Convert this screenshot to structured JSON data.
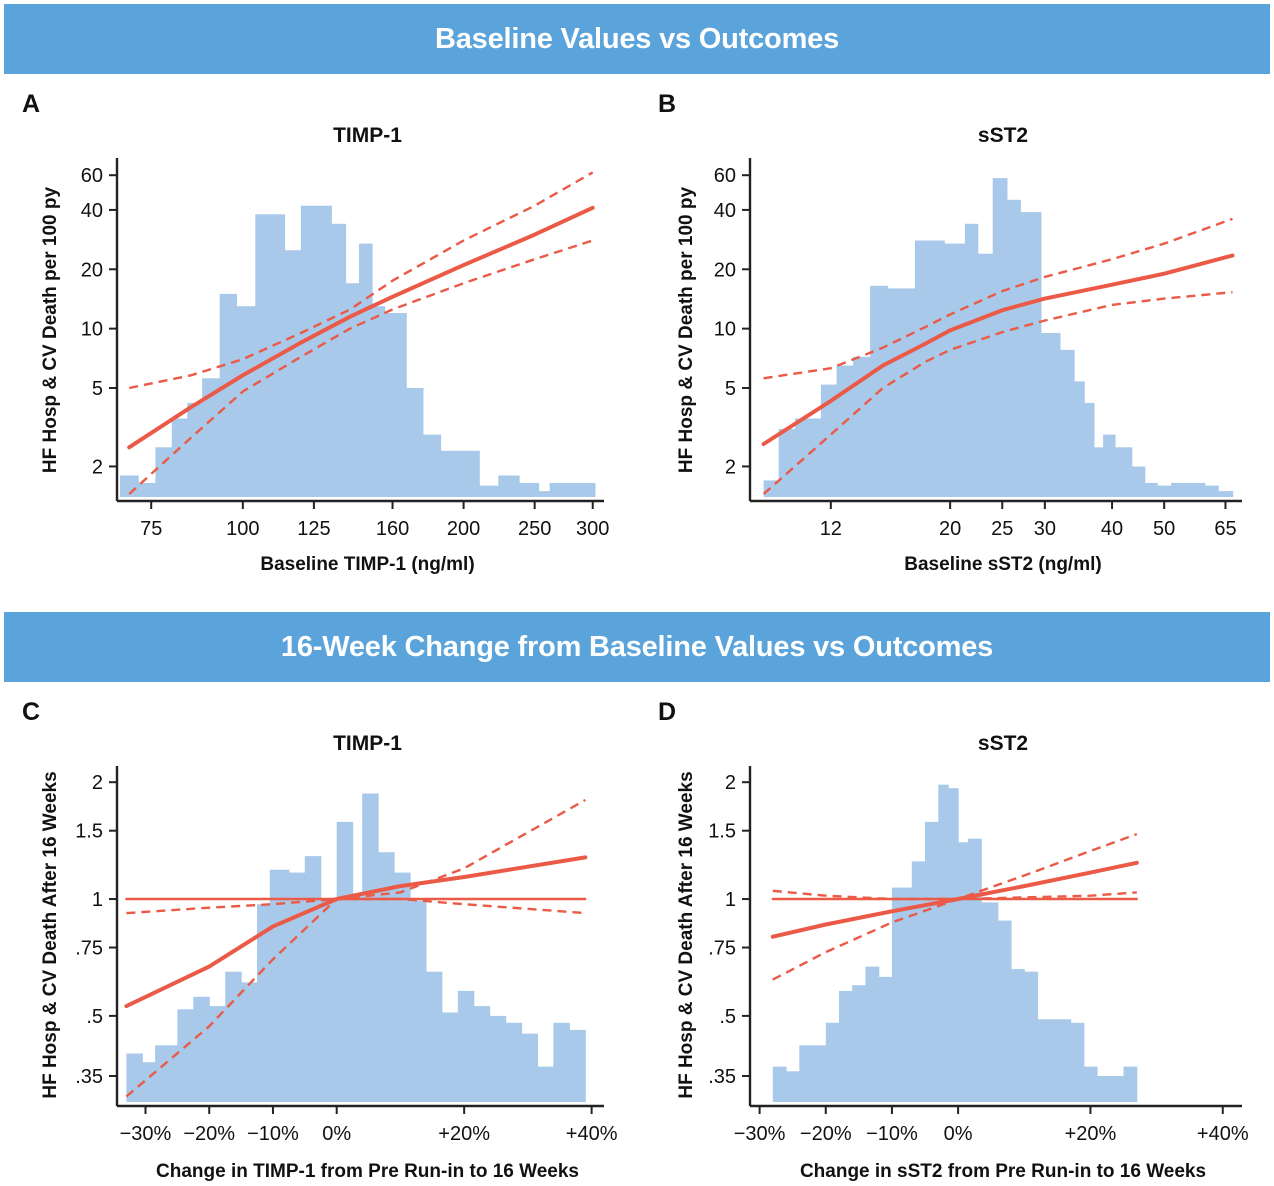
{
  "banners": {
    "top": "Baseline Values vs Outcomes",
    "bottom": "16-Week Change from Baseline Values vs Outcomes"
  },
  "colors": {
    "banner": "#5ba4db",
    "histogram": "#a9c9ea",
    "curve": "#ea5a46",
    "axis": "#222222"
  },
  "chart_data": [
    {
      "type": "histogram+line",
      "panel": "A",
      "title": "TIMP-1",
      "xlabel": "Baseline TIMP-1 (ng/ml)",
      "ylabel": "HF Hosp & CV Death per 100 py",
      "xscale": "log",
      "yscale": "log",
      "xlim": [
        68,
        305
      ],
      "ylim": [
        1.4,
        70
      ],
      "xticks": [
        75,
        100,
        125,
        160,
        200,
        250,
        300
      ],
      "xtick_labels": [
        "75",
        "100",
        "125",
        "160",
        "200",
        "250",
        "300"
      ],
      "yticks": [
        2,
        5,
        10,
        20,
        40,
        60
      ],
      "ytick_labels": [
        "2",
        "5",
        "10",
        "20",
        "40",
        "60"
      ],
      "grid": false,
      "histogram_bins": [
        {
          "x0": 68,
          "x1": 72,
          "y": 1.8
        },
        {
          "x0": 72,
          "x1": 76,
          "y": 1.65
        },
        {
          "x0": 76,
          "x1": 80,
          "y": 2.5
        },
        {
          "x0": 80,
          "x1": 84,
          "y": 3.5
        },
        {
          "x0": 84,
          "x1": 88,
          "y": 4.2
        },
        {
          "x0": 88,
          "x1": 93,
          "y": 5.6
        },
        {
          "x0": 93,
          "x1": 98,
          "y": 15
        },
        {
          "x0": 98,
          "x1": 104,
          "y": 13
        },
        {
          "x0": 104,
          "x1": 114,
          "y": 38
        },
        {
          "x0": 114,
          "x1": 120,
          "y": 25
        },
        {
          "x0": 120,
          "x1": 132,
          "y": 42
        },
        {
          "x0": 132,
          "x1": 138,
          "y": 34
        },
        {
          "x0": 138,
          "x1": 144,
          "y": 17
        },
        {
          "x0": 144,
          "x1": 150,
          "y": 27
        },
        {
          "x0": 150,
          "x1": 156,
          "y": 13
        },
        {
          "x0": 156,
          "x1": 167,
          "y": 12
        },
        {
          "x0": 167,
          "x1": 176,
          "y": 5
        },
        {
          "x0": 176,
          "x1": 186,
          "y": 2.9
        },
        {
          "x0": 186,
          "x1": 210,
          "y": 2.4
        },
        {
          "x0": 210,
          "x1": 223,
          "y": 1.6
        },
        {
          "x0": 223,
          "x1": 238,
          "y": 1.8
        },
        {
          "x0": 238,
          "x1": 253,
          "y": 1.65
        },
        {
          "x0": 253,
          "x1": 262,
          "y": 1.5
        },
        {
          "x0": 262,
          "x1": 302,
          "y": 1.65
        }
      ],
      "series": [
        {
          "style": "solid",
          "x": [
            70,
            85,
            100,
            120,
            140,
            160,
            200,
            250,
            300
          ],
          "y": [
            2.5,
            4.0,
            5.8,
            8.5,
            11.5,
            14.5,
            21,
            30,
            41
          ]
        },
        {
          "style": "dashed",
          "x": [
            70,
            85,
            100,
            120,
            140,
            160,
            200,
            250,
            300
          ],
          "y": [
            5.0,
            5.8,
            7.0,
            9.5,
            12.5,
            17.5,
            28,
            42,
            62
          ]
        },
        {
          "style": "dashed",
          "x": [
            70,
            85,
            100,
            120,
            140,
            160,
            200,
            250,
            300
          ],
          "y": [
            1.45,
            2.8,
            4.8,
            7.2,
            10,
            12.5,
            17,
            22.5,
            28
          ]
        }
      ]
    },
    {
      "type": "histogram+line",
      "panel": "B",
      "title": "sST2",
      "xlabel": "Baseline sST2 (ng/ml)",
      "ylabel": "HF Hosp & CV Death per 100 py",
      "xscale": "log",
      "yscale": "log",
      "xlim": [
        8.6,
        68
      ],
      "ylim": [
        1.4,
        70
      ],
      "xticks": [
        12,
        20,
        25,
        30,
        40,
        50,
        65
      ],
      "xtick_labels": [
        "12",
        "20",
        "25",
        "30",
        "40",
        "50",
        "65"
      ],
      "yticks": [
        2,
        5,
        10,
        20,
        40,
        60
      ],
      "ytick_labels": [
        "2",
        "5",
        "10",
        "20",
        "40",
        "60"
      ],
      "grid": false,
      "histogram_bins": [
        {
          "x0": 9.0,
          "x1": 9.6,
          "y": 1.7
        },
        {
          "x0": 9.6,
          "x1": 10.3,
          "y": 3.1
        },
        {
          "x0": 10.3,
          "x1": 11.5,
          "y": 3.5
        },
        {
          "x0": 11.5,
          "x1": 12.3,
          "y": 5.2
        },
        {
          "x0": 12.3,
          "x1": 13.2,
          "y": 6.5
        },
        {
          "x0": 13.2,
          "x1": 14.2,
          "y": 7.2
        },
        {
          "x0": 14.2,
          "x1": 15.3,
          "y": 16.5
        },
        {
          "x0": 15.3,
          "x1": 17.2,
          "y": 16
        },
        {
          "x0": 17.2,
          "x1": 19.5,
          "y": 28
        },
        {
          "x0": 19.5,
          "x1": 21.3,
          "y": 27
        },
        {
          "x0": 21.3,
          "x1": 22.5,
          "y": 34
        },
        {
          "x0": 22.5,
          "x1": 24.0,
          "y": 24
        },
        {
          "x0": 24.0,
          "x1": 25.5,
          "y": 58
        },
        {
          "x0": 25.5,
          "x1": 27.0,
          "y": 45
        },
        {
          "x0": 27.0,
          "x1": 29.5,
          "y": 39
        },
        {
          "x0": 29.5,
          "x1": 32.0,
          "y": 9.5
        },
        {
          "x0": 32.0,
          "x1": 34.0,
          "y": 7.8
        },
        {
          "x0": 34.0,
          "x1": 35.5,
          "y": 5.4
        },
        {
          "x0": 35.5,
          "x1": 37.0,
          "y": 4.2
        },
        {
          "x0": 37.0,
          "x1": 38.5,
          "y": 2.5
        },
        {
          "x0": 38.5,
          "x1": 40.5,
          "y": 2.9
        },
        {
          "x0": 40.5,
          "x1": 43.5,
          "y": 2.5
        },
        {
          "x0": 43.5,
          "x1": 46.0,
          "y": 2.0
        },
        {
          "x0": 46.0,
          "x1": 48.5,
          "y": 1.65
        },
        {
          "x0": 48.5,
          "x1": 51.5,
          "y": 1.6
        },
        {
          "x0": 51.5,
          "x1": 59.5,
          "y": 1.65
        },
        {
          "x0": 59.5,
          "x1": 63.0,
          "y": 1.6
        },
        {
          "x0": 63.0,
          "x1": 67.0,
          "y": 1.5
        }
      ],
      "series": [
        {
          "style": "solid",
          "x": [
            9,
            12,
            15,
            18,
            20,
            25,
            30,
            40,
            50,
            67
          ],
          "y": [
            2.6,
            4.3,
            6.5,
            8.4,
            9.8,
            12.4,
            14.2,
            16.7,
            19,
            23.5
          ]
        },
        {
          "style": "dashed",
          "x": [
            9,
            12,
            15,
            18,
            20,
            25,
            30,
            40,
            50,
            67
          ],
          "y": [
            5.6,
            6.3,
            8.0,
            10.2,
            11.8,
            15.5,
            18.3,
            22.5,
            27,
            36
          ]
        },
        {
          "style": "dashed",
          "x": [
            9,
            12,
            15,
            18,
            20,
            25,
            30,
            40,
            50,
            67
          ],
          "y": [
            1.45,
            2.9,
            5.0,
            6.8,
            7.8,
            9.6,
            11.0,
            13.2,
            14.2,
            15.3
          ]
        }
      ]
    },
    {
      "type": "histogram+line",
      "panel": "C",
      "title": "TIMP-1",
      "xlabel": "Change in TIMP-1 from Pre Run-in to 16 Weeks",
      "ylabel": "HF Hosp & CV Death After 16 Weeks",
      "xscale": "linear",
      "yscale": "log",
      "xlim": [
        -34,
        41
      ],
      "ylim": [
        0.3,
        2.15
      ],
      "xticks": [
        -30,
        -20,
        -10,
        0,
        20,
        40
      ],
      "xtick_labels": [
        "−30%",
        "−20%",
        "−10%",
        "0%",
        "+20%",
        "+40%"
      ],
      "yticks": [
        0.35,
        0.5,
        0.75,
        1,
        1.5,
        2
      ],
      "ytick_labels": [
        ".35",
        ".5",
        ".75",
        "1",
        "1.5",
        "2"
      ],
      "grid": false,
      "histogram_bins": [
        {
          "x0": -33,
          "x1": -30.5,
          "y": 0.4
        },
        {
          "x0": -30.5,
          "x1": -28.5,
          "y": 0.38
        },
        {
          "x0": -28.5,
          "x1": -25,
          "y": 0.42
        },
        {
          "x0": -25,
          "x1": -22.5,
          "y": 0.52
        },
        {
          "x0": -22.5,
          "x1": -20,
          "y": 0.56
        },
        {
          "x0": -20,
          "x1": -17.5,
          "y": 0.53
        },
        {
          "x0": -17.5,
          "x1": -15,
          "y": 0.65
        },
        {
          "x0": -15,
          "x1": -12.5,
          "y": 0.61
        },
        {
          "x0": -12.5,
          "x1": -10.5,
          "y": 0.97
        },
        {
          "x0": -10.5,
          "x1": -7.5,
          "y": 1.19
        },
        {
          "x0": -7.5,
          "x1": -5,
          "y": 1.17
        },
        {
          "x0": -5,
          "x1": -2.5,
          "y": 1.29
        },
        {
          "x0": -2.5,
          "x1": 0,
          "y": 1.0
        },
        {
          "x0": 0,
          "x1": 2.5,
          "y": 1.58
        },
        {
          "x0": 2.5,
          "x1": 4,
          "y": 1.02
        },
        {
          "x0": 4,
          "x1": 6.5,
          "y": 1.87
        },
        {
          "x0": 6.5,
          "x1": 9,
          "y": 1.32
        },
        {
          "x0": 9,
          "x1": 11.5,
          "y": 1.17
        },
        {
          "x0": 11.5,
          "x1": 14,
          "y": 0.99
        },
        {
          "x0": 14,
          "x1": 16.5,
          "y": 0.65
        },
        {
          "x0": 16.5,
          "x1": 19,
          "y": 0.51
        },
        {
          "x0": 19,
          "x1": 21.5,
          "y": 0.58
        },
        {
          "x0": 21.5,
          "x1": 24,
          "y": 0.53
        },
        {
          "x0": 24,
          "x1": 26.5,
          "y": 0.5
        },
        {
          "x0": 26.5,
          "x1": 29,
          "y": 0.48
        },
        {
          "x0": 29,
          "x1": 31.5,
          "y": 0.45
        },
        {
          "x0": 31.5,
          "x1": 34,
          "y": 0.37
        },
        {
          "x0": 34,
          "x1": 36.5,
          "y": 0.48
        },
        {
          "x0": 36.5,
          "x1": 39,
          "y": 0.46
        }
      ],
      "series": [
        {
          "style": "solid",
          "x": [
            -33,
            -20,
            -10,
            0,
            10,
            20,
            39
          ],
          "y": [
            0.53,
            0.67,
            0.85,
            1.0,
            1.08,
            1.14,
            1.28
          ]
        },
        {
          "style": "dashed",
          "x": [
            -33,
            -20,
            -10,
            0,
            10,
            20,
            39
          ],
          "y": [
            0.92,
            0.95,
            0.97,
            1.0,
            1.04,
            1.2,
            1.8
          ]
        },
        {
          "style": "dashed",
          "x": [
            -33,
            -20,
            -10,
            0,
            10,
            20,
            39
          ],
          "y": [
            0.31,
            0.47,
            0.7,
            1.0,
            1.0,
            0.97,
            0.92
          ]
        },
        {
          "style": "reference",
          "x": [
            -33,
            39
          ],
          "y": [
            1.0,
            1.0
          ]
        }
      ]
    },
    {
      "type": "histogram+line",
      "panel": "D",
      "title": "sST2",
      "xlabel": "Change in sST2 from Pre Run-in to 16 Weeks",
      "ylabel": "HF Hosp & CV Death After 16 Weeks",
      "xscale": "linear",
      "yscale": "log",
      "xlim": [
        -31,
        42
      ],
      "ylim": [
        0.3,
        2.15
      ],
      "xticks": [
        -30,
        -20,
        -10,
        0,
        20,
        40
      ],
      "xtick_labels": [
        "−30%",
        "−20%",
        "−10%",
        "0%",
        "+20%",
        "+40%"
      ],
      "yticks": [
        0.35,
        0.5,
        0.75,
        1,
        1.5,
        2
      ],
      "ytick_labels": [
        ".35",
        ".5",
        ".75",
        "1",
        "1.5",
        "2"
      ],
      "grid": false,
      "histogram_bins": [
        {
          "x0": -28,
          "x1": -26,
          "y": 0.37
        },
        {
          "x0": -26,
          "x1": -24,
          "y": 0.36
        },
        {
          "x0": -24,
          "x1": -20,
          "y": 0.42
        },
        {
          "x0": -20,
          "x1": -18,
          "y": 0.48
        },
        {
          "x0": -18,
          "x1": -16,
          "y": 0.58
        },
        {
          "x0": -16,
          "x1": -14,
          "y": 0.6
        },
        {
          "x0": -14,
          "x1": -12,
          "y": 0.67
        },
        {
          "x0": -12,
          "x1": -10,
          "y": 0.63
        },
        {
          "x0": -10,
          "x1": -7,
          "y": 1.07
        },
        {
          "x0": -7,
          "x1": -5,
          "y": 1.25
        },
        {
          "x0": -5,
          "x1": -3,
          "y": 1.58
        },
        {
          "x0": -3,
          "x1": -1.5,
          "y": 1.97
        },
        {
          "x0": -1.5,
          "x1": 0,
          "y": 1.93
        },
        {
          "x0": 0,
          "x1": 1.5,
          "y": 1.4
        },
        {
          "x0": 1.5,
          "x1": 3.5,
          "y": 1.43
        },
        {
          "x0": 3.5,
          "x1": 6,
          "y": 0.98
        },
        {
          "x0": 6,
          "x1": 8,
          "y": 0.88
        },
        {
          "x0": 8,
          "x1": 10,
          "y": 0.66
        },
        {
          "x0": 10,
          "x1": 12,
          "y": 0.65
        },
        {
          "x0": 12,
          "x1": 15,
          "y": 0.49
        },
        {
          "x0": 15,
          "x1": 17,
          "y": 0.49
        },
        {
          "x0": 17,
          "x1": 19,
          "y": 0.48
        },
        {
          "x0": 19,
          "x1": 21,
          "y": 0.37
        },
        {
          "x0": 21,
          "x1": 23,
          "y": 0.35
        },
        {
          "x0": 23,
          "x1": 25,
          "y": 0.35
        },
        {
          "x0": 25,
          "x1": 27,
          "y": 0.37
        }
      ],
      "series": [
        {
          "style": "solid",
          "x": [
            -28,
            -20,
            -10,
            0,
            10,
            20,
            27
          ],
          "y": [
            0.8,
            0.86,
            0.93,
            1.0,
            1.08,
            1.17,
            1.24
          ]
        },
        {
          "style": "dashed",
          "x": [
            -28,
            -20,
            -10,
            0,
            10,
            20,
            27
          ],
          "y": [
            1.05,
            1.02,
            1.0,
            1.0,
            1.01,
            1.02,
            1.04
          ]
        },
        {
          "style": "dashed",
          "x": [
            -28,
            -20,
            -10,
            0,
            10,
            20,
            27
          ],
          "y": [
            0.62,
            0.73,
            0.87,
            1.0,
            1.15,
            1.33,
            1.47
          ]
        },
        {
          "style": "reference",
          "x": [
            -28,
            27
          ],
          "y": [
            1.0,
            1.0
          ]
        }
      ]
    }
  ]
}
